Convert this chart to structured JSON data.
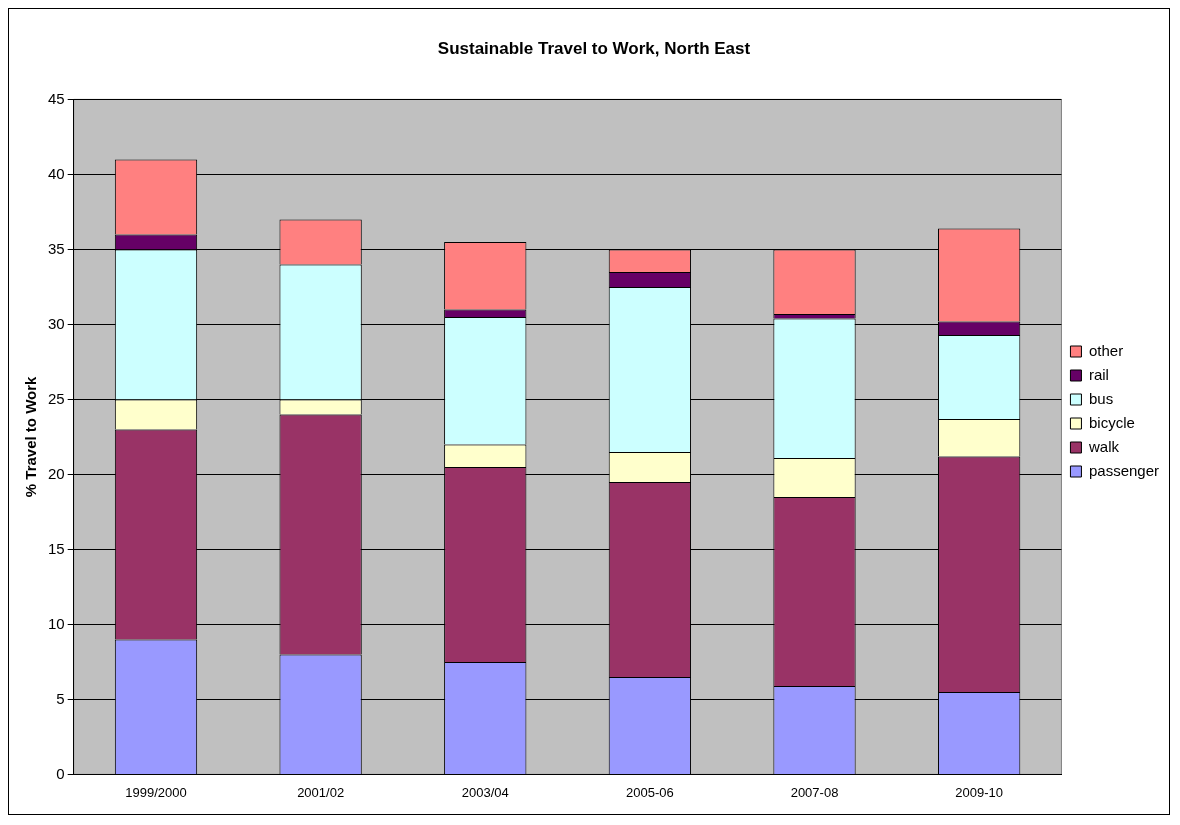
{
  "chart_data": {
    "type": "bar",
    "title": "Sustainable Travel to Work, North East",
    "ylabel": "% Travel to Work",
    "categories": [
      "1999/2000",
      "2001/02",
      "2003/04",
      "2005-06",
      "2007-08",
      "2009-10"
    ],
    "stacked": true,
    "series": [
      {
        "name": "passenger",
        "color": "#9999ff",
        "values": [
          9,
          8,
          7.5,
          6.5,
          5.9,
          5.5
        ]
      },
      {
        "name": "walk",
        "color": "#993366",
        "values": [
          14,
          16,
          13,
          13,
          12.6,
          15.7
        ]
      },
      {
        "name": "bicycle",
        "color": "#ffffcc",
        "values": [
          2,
          1,
          1.5,
          2,
          2.6,
          2.5
        ]
      },
      {
        "name": "bus",
        "color": "#ccffff",
        "values": [
          10,
          9,
          8.5,
          11,
          9.3,
          5.6
        ]
      },
      {
        "name": "rail",
        "color": "#660066",
        "values": [
          1,
          0,
          0.5,
          1,
          0.3,
          0.9
        ]
      },
      {
        "name": "other",
        "color": "#ff8080",
        "values": [
          5,
          3,
          4.5,
          1.5,
          4.3,
          6.2
        ]
      }
    ],
    "ylim": [
      0,
      45
    ],
    "yticks": [
      0,
      5,
      10,
      15,
      20,
      25,
      30,
      35,
      40,
      45
    ],
    "grid": "y",
    "legend": "right"
  }
}
